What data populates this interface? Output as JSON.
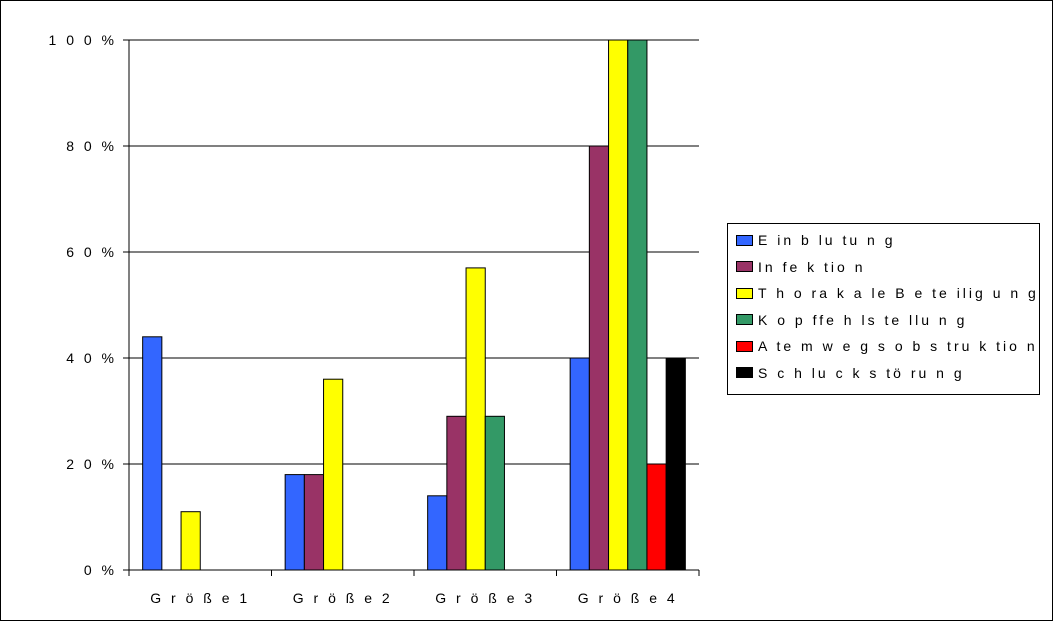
{
  "chart_data": {
    "type": "bar",
    "categories": [
      "G r ö ß e  1",
      "G r ö ß e  2",
      "G r ö ß e  3",
      "G r ö ß e  4"
    ],
    "series": [
      {
        "name": "E in b lu tu n g",
        "color": "#3366FF",
        "values": [
          44,
          18,
          14,
          40
        ]
      },
      {
        "name": "In fe k tio n",
        "color": "#993366",
        "values": [
          0,
          18,
          29,
          80
        ]
      },
      {
        "name": "T h o ra k a le  B e te ilig u n g",
        "color": "#FFFF00",
        "values": [
          11,
          36,
          57,
          100
        ]
      },
      {
        "name": "K o p ffe h ls te llu n g",
        "color": "#339966",
        "values": [
          0,
          0,
          29,
          100
        ]
      },
      {
        "name": "A te m w e g s o b s tru k tio n",
        "color": "#FF0000",
        "values": [
          0,
          0,
          0,
          20
        ]
      },
      {
        "name": "S c h lu c k s tö ru n g",
        "color": "#000000",
        "values": [
          0,
          0,
          0,
          40
        ]
      }
    ],
    "yticks": [
      "0 %",
      "2 0 %",
      "4 0 %",
      "6 0 %",
      "8 0 %",
      "1 0 0 %"
    ],
    "ylim": [
      0,
      100
    ],
    "grid": true,
    "legend_position": "right"
  }
}
